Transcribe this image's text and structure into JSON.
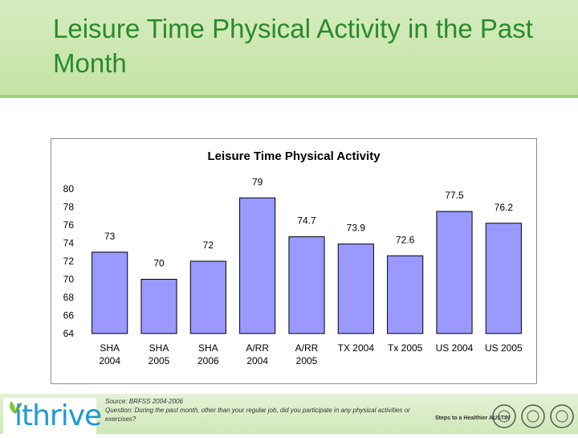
{
  "slide": {
    "title": "Leisure Time Physical Activity in the Past Month",
    "source_line": "Source: BRFSS 2004-2006",
    "question_line": "Question: During the past month, other than your regular job, did you participate in any physical activities or exercises?",
    "logo_text": "ithrive",
    "partner_logo_text": "Steps to a Healthier AUSTIN"
  },
  "colors": {
    "title": "#2a8a2a",
    "bar_fill": "#9999ff",
    "bar_stroke": "#000000"
  },
  "icons": [
    "leaf-icon",
    "partner-seal-icon"
  ],
  "chart_data": {
    "type": "bar",
    "title": "Leisure Time Physical Activity",
    "categories": [
      [
        "SHA",
        "2004"
      ],
      [
        "SHA",
        "2005"
      ],
      [
        "SHA",
        "2006"
      ],
      [
        "A/RR",
        "2004"
      ],
      [
        "A/RR",
        "2005"
      ],
      [
        "TX 2004"
      ],
      [
        "Tx 2005"
      ],
      [
        "US 2004"
      ],
      [
        "US 2005"
      ]
    ],
    "values": [
      73,
      70,
      72,
      79,
      74.7,
      73.9,
      72.6,
      77.5,
      76.2
    ],
    "ylim": [
      64,
      80
    ],
    "yticks": [
      64,
      66,
      68,
      70,
      72,
      74,
      76,
      78,
      80
    ],
    "grid": false,
    "legend": "none"
  }
}
